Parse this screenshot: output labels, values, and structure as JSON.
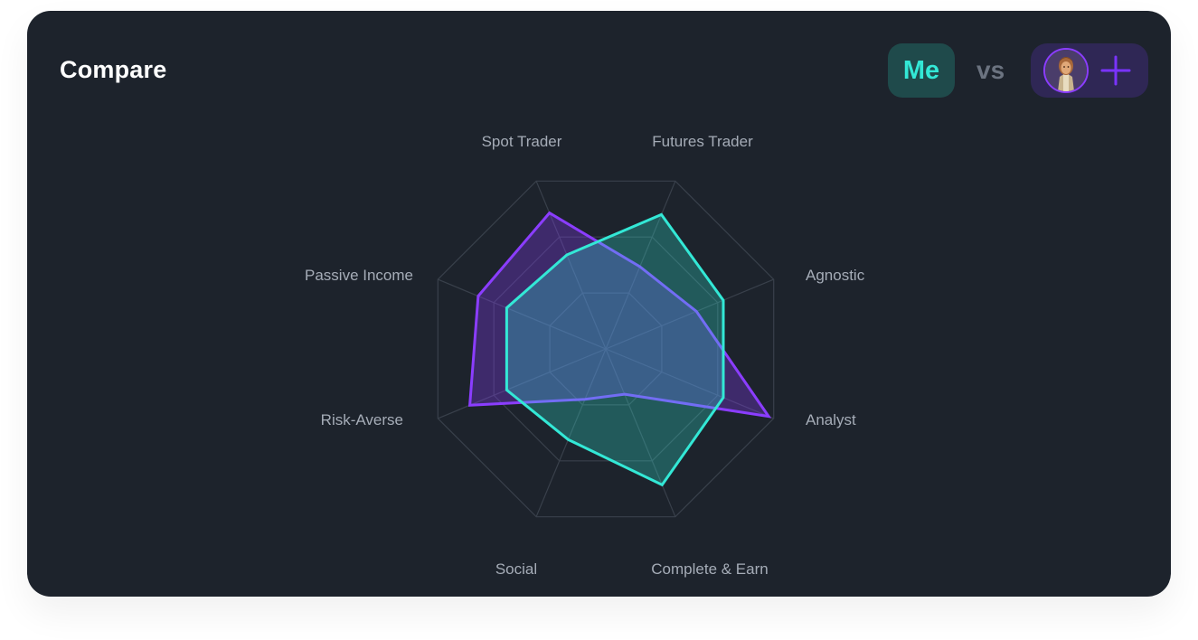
{
  "header": {
    "title": "Compare",
    "me_label": "Me",
    "vs_label": "vs"
  },
  "colors": {
    "card_background": "#1d232c",
    "me_series": "#33e8d6",
    "opponent_series": "#8b3dff",
    "grid": "#39404b"
  },
  "icons": {
    "avatar": "character-avatar-icon",
    "add": "plus-icon"
  },
  "chart_data": {
    "type": "radar",
    "title": "",
    "categories": [
      "Spot Trader",
      "Futures Trader",
      "Agnostic",
      "Analyst",
      "Complete & Earn",
      "Social",
      "Risk-Averse",
      "Passive Income"
    ],
    "max": 10,
    "grid_rings": 3,
    "series": [
      {
        "name": "Me",
        "color": "#33e8d6",
        "values": [
          5.6,
          8.0,
          7.0,
          7.0,
          8.1,
          5.4,
          5.9,
          5.9
        ]
      },
      {
        "name": "",
        "color": "#8b3dff",
        "values": [
          8.1,
          4.9,
          5.4,
          9.7,
          2.7,
          3.0,
          8.1,
          7.6
        ]
      }
    ]
  }
}
